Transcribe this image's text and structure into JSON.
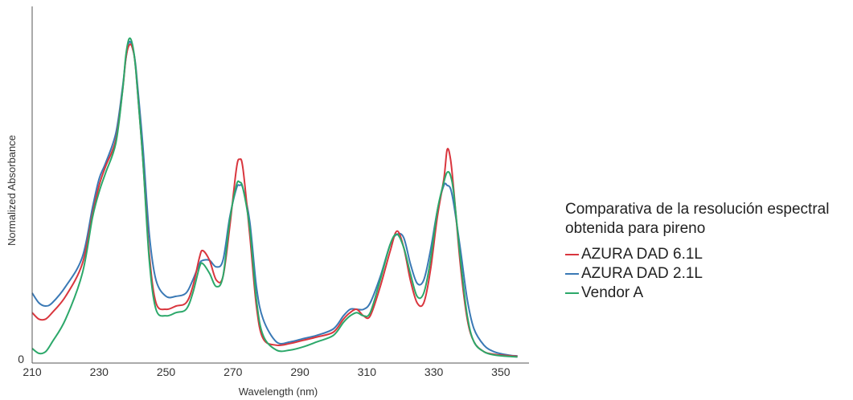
{
  "chart_data": {
    "type": "line",
    "title": "",
    "xlabel": "Wavelength (nm)",
    "ylabel": "Normalized Absorbance",
    "xlim": [
      210,
      357
    ],
    "ylim": [
      0,
      1.0
    ],
    "x_ticks": [
      "210",
      "230",
      "250",
      "270",
      "290",
      "310",
      "330",
      "350"
    ],
    "y_ticks": [
      "0"
    ],
    "grid": false,
    "legend_position": "right",
    "legend_title": "Comparativa de la resolución espectral obtenida para pireno",
    "series": [
      {
        "name": "AZURA DAD 6.1L",
        "color": "#d9363e",
        "points": [
          [
            210,
            0.14
          ],
          [
            212,
            0.12
          ],
          [
            214,
            0.12
          ],
          [
            216,
            0.14
          ],
          [
            220,
            0.19
          ],
          [
            225,
            0.29
          ],
          [
            228,
            0.44
          ],
          [
            230,
            0.53
          ],
          [
            232,
            0.59
          ],
          [
            235,
            0.67
          ],
          [
            237,
            0.82
          ],
          [
            238,
            0.92
          ],
          [
            239,
            0.96
          ],
          [
            240,
            0.95
          ],
          [
            241,
            0.88
          ],
          [
            243,
            0.62
          ],
          [
            245,
            0.32
          ],
          [
            247,
            0.17
          ],
          [
            250,
            0.15
          ],
          [
            253,
            0.16
          ],
          [
            256,
            0.17
          ],
          [
            258,
            0.22
          ],
          [
            260,
            0.31
          ],
          [
            261,
            0.33
          ],
          [
            263,
            0.3
          ],
          [
            265,
            0.24
          ],
          [
            267,
            0.25
          ],
          [
            269,
            0.4
          ],
          [
            271,
            0.58
          ],
          [
            272,
            0.61
          ],
          [
            273,
            0.58
          ],
          [
            275,
            0.38
          ],
          [
            277,
            0.16
          ],
          [
            279,
            0.06
          ],
          [
            283,
            0.04
          ],
          [
            287,
            0.045
          ],
          [
            291,
            0.055
          ],
          [
            295,
            0.065
          ],
          [
            300,
            0.08
          ],
          [
            303,
            0.12
          ],
          [
            305,
            0.14
          ],
          [
            307,
            0.15
          ],
          [
            309,
            0.13
          ],
          [
            311,
            0.13
          ],
          [
            314,
            0.22
          ],
          [
            317,
            0.33
          ],
          [
            319,
            0.39
          ],
          [
            321,
            0.34
          ],
          [
            323,
            0.24
          ],
          [
            325,
            0.17
          ],
          [
            327,
            0.17
          ],
          [
            329,
            0.27
          ],
          [
            331,
            0.43
          ],
          [
            333,
            0.55
          ],
          [
            334,
            0.64
          ],
          [
            335,
            0.61
          ],
          [
            336,
            0.51
          ],
          [
            338,
            0.28
          ],
          [
            340,
            0.12
          ],
          [
            342,
            0.05
          ],
          [
            345,
            0.02
          ],
          [
            348,
            0.012
          ],
          [
            352,
            0.008
          ],
          [
            355,
            0.006
          ]
        ]
      },
      {
        "name": "AZURA DAD 2.1L",
        "color": "#3a79b5",
        "points": [
          [
            210,
            0.2
          ],
          [
            212,
            0.17
          ],
          [
            214,
            0.16
          ],
          [
            216,
            0.17
          ],
          [
            220,
            0.22
          ],
          [
            225,
            0.31
          ],
          [
            228,
            0.46
          ],
          [
            230,
            0.55
          ],
          [
            232,
            0.6
          ],
          [
            235,
            0.69
          ],
          [
            237,
            0.83
          ],
          [
            238,
            0.92
          ],
          [
            239,
            0.97
          ],
          [
            240,
            0.95
          ],
          [
            241,
            0.89
          ],
          [
            243,
            0.66
          ],
          [
            245,
            0.38
          ],
          [
            247,
            0.24
          ],
          [
            250,
            0.19
          ],
          [
            253,
            0.19
          ],
          [
            256,
            0.2
          ],
          [
            258,
            0.24
          ],
          [
            260,
            0.29
          ],
          [
            261,
            0.3
          ],
          [
            263,
            0.3
          ],
          [
            265,
            0.28
          ],
          [
            267,
            0.3
          ],
          [
            269,
            0.43
          ],
          [
            271,
            0.52
          ],
          [
            272,
            0.53
          ],
          [
            273,
            0.52
          ],
          [
            275,
            0.42
          ],
          [
            277,
            0.22
          ],
          [
            279,
            0.12
          ],
          [
            283,
            0.05
          ],
          [
            287,
            0.05
          ],
          [
            291,
            0.06
          ],
          [
            295,
            0.07
          ],
          [
            300,
            0.09
          ],
          [
            303,
            0.13
          ],
          [
            305,
            0.15
          ],
          [
            307,
            0.15
          ],
          [
            309,
            0.15
          ],
          [
            311,
            0.17
          ],
          [
            314,
            0.25
          ],
          [
            317,
            0.35
          ],
          [
            319,
            0.38
          ],
          [
            321,
            0.37
          ],
          [
            323,
            0.29
          ],
          [
            325,
            0.23
          ],
          [
            327,
            0.24
          ],
          [
            329,
            0.33
          ],
          [
            331,
            0.45
          ],
          [
            333,
            0.53
          ],
          [
            334,
            0.53
          ],
          [
            335,
            0.52
          ],
          [
            336,
            0.47
          ],
          [
            338,
            0.33
          ],
          [
            340,
            0.18
          ],
          [
            342,
            0.09
          ],
          [
            345,
            0.04
          ],
          [
            348,
            0.02
          ],
          [
            352,
            0.01
          ],
          [
            355,
            0.007
          ]
        ]
      },
      {
        "name": "Vendor A",
        "color": "#2ca86a",
        "points": [
          [
            210,
            0.03
          ],
          [
            212,
            0.015
          ],
          [
            214,
            0.02
          ],
          [
            216,
            0.05
          ],
          [
            220,
            0.12
          ],
          [
            225,
            0.26
          ],
          [
            228,
            0.43
          ],
          [
            230,
            0.51
          ],
          [
            232,
            0.57
          ],
          [
            235,
            0.66
          ],
          [
            237,
            0.82
          ],
          [
            238,
            0.93
          ],
          [
            239,
            0.98
          ],
          [
            240,
            0.96
          ],
          [
            241,
            0.88
          ],
          [
            243,
            0.62
          ],
          [
            245,
            0.3
          ],
          [
            247,
            0.15
          ],
          [
            250,
            0.13
          ],
          [
            253,
            0.14
          ],
          [
            256,
            0.15
          ],
          [
            258,
            0.2
          ],
          [
            260,
            0.28
          ],
          [
            261,
            0.29
          ],
          [
            263,
            0.26
          ],
          [
            265,
            0.22
          ],
          [
            267,
            0.25
          ],
          [
            269,
            0.42
          ],
          [
            271,
            0.53
          ],
          [
            272,
            0.54
          ],
          [
            273,
            0.52
          ],
          [
            275,
            0.4
          ],
          [
            277,
            0.18
          ],
          [
            279,
            0.07
          ],
          [
            283,
            0.025
          ],
          [
            287,
            0.025
          ],
          [
            291,
            0.035
          ],
          [
            295,
            0.05
          ],
          [
            300,
            0.07
          ],
          [
            303,
            0.11
          ],
          [
            305,
            0.13
          ],
          [
            307,
            0.14
          ],
          [
            309,
            0.13
          ],
          [
            311,
            0.14
          ],
          [
            314,
            0.24
          ],
          [
            317,
            0.35
          ],
          [
            319,
            0.38
          ],
          [
            321,
            0.34
          ],
          [
            323,
            0.26
          ],
          [
            325,
            0.19
          ],
          [
            327,
            0.2
          ],
          [
            329,
            0.3
          ],
          [
            331,
            0.45
          ],
          [
            333,
            0.54
          ],
          [
            334,
            0.57
          ],
          [
            335,
            0.56
          ],
          [
            336,
            0.5
          ],
          [
            338,
            0.3
          ],
          [
            340,
            0.13
          ],
          [
            342,
            0.05
          ],
          [
            345,
            0.02
          ],
          [
            348,
            0.01
          ],
          [
            352,
            0.006
          ],
          [
            355,
            0.004
          ]
        ]
      }
    ]
  }
}
